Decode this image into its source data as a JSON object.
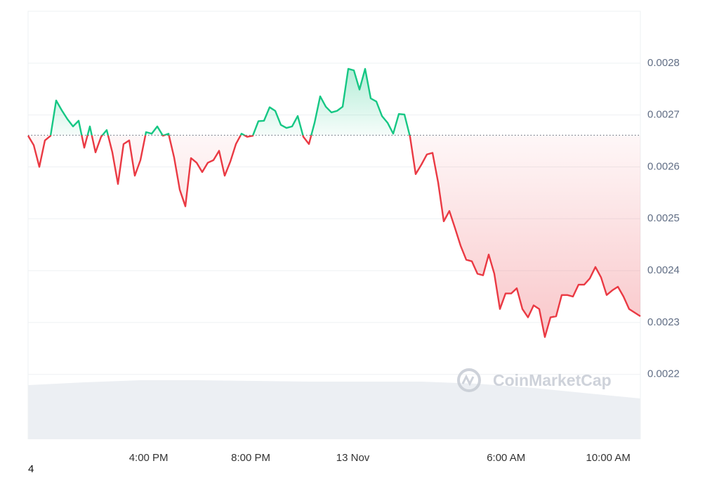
{
  "chart_data": {
    "type": "line",
    "x": [
      -12.72,
      -12.5,
      -12.28,
      -12.06,
      -11.84,
      -11.62,
      -11.4,
      -11.18,
      -10.96,
      -10.74,
      -10.52,
      -10.3,
      -10.08,
      -9.86,
      -9.64,
      -9.42,
      -9.2,
      -8.98,
      -8.76,
      -8.54,
      -8.32,
      -8.1,
      -7.88,
      -7.66,
      -7.44,
      -7.22,
      -7,
      -6.78,
      -6.56,
      -6.34,
      -6.12,
      -5.9,
      -5.68,
      -5.46,
      -5.24,
      -5.02,
      -4.8,
      -4.58,
      -4.36,
      -4.14,
      -3.92,
      -3.7,
      -3.48,
      -3.26,
      -3.04,
      -2.82,
      -2.6,
      -2.38,
      -2.16,
      -1.94,
      -1.72,
      -1.5,
      -1.28,
      -1.06,
      -0.84,
      -0.62,
      -0.4,
      -0.18,
      0.04,
      0.26,
      0.48,
      0.7,
      0.92,
      1.14,
      1.36,
      1.58,
      1.8,
      2.02,
      2.24,
      2.46,
      2.68,
      2.9,
      3.12,
      3.34,
      3.56,
      3.78,
      4,
      4.22,
      4.44,
      4.66,
      4.88,
      5.1,
      5.32,
      5.54,
      5.76,
      5.98,
      6.2,
      6.42,
      6.64,
      6.86,
      7.08,
      7.3,
      7.52,
      7.74,
      7.96,
      8.18,
      8.4,
      8.62,
      8.84,
      9.06,
      9.28,
      9.5,
      9.72,
      9.94,
      10.16,
      10.38,
      10.6,
      10.82,
      11.04,
      11.26
    ],
    "values": [
      0.00266,
      0.002642,
      0.0026,
      0.002651,
      0.00266,
      0.002728,
      0.002709,
      0.002692,
      0.002678,
      0.002689,
      0.002637,
      0.002678,
      0.002628,
      0.002658,
      0.002671,
      0.002628,
      0.002567,
      0.002644,
      0.002651,
      0.002583,
      0.002613,
      0.002667,
      0.002664,
      0.002678,
      0.00266,
      0.002664,
      0.002618,
      0.002556,
      0.002524,
      0.002617,
      0.002608,
      0.00259,
      0.002608,
      0.002613,
      0.002631,
      0.002583,
      0.00261,
      0.002644,
      0.002664,
      0.002658,
      0.00266,
      0.002688,
      0.002689,
      0.002715,
      0.002708,
      0.002681,
      0.002675,
      0.002678,
      0.002698,
      0.002658,
      0.002644,
      0.002685,
      0.002736,
      0.002716,
      0.002705,
      0.002708,
      0.002716,
      0.002789,
      0.002786,
      0.002749,
      0.002789,
      0.002732,
      0.002726,
      0.002698,
      0.002685,
      0.002664,
      0.002702,
      0.002701,
      0.002658,
      0.002586,
      0.002604,
      0.002624,
      0.002627,
      0.00257,
      0.002495,
      0.002515,
      0.002482,
      0.002448,
      0.002421,
      0.002418,
      0.002394,
      0.002391,
      0.002431,
      0.002394,
      0.002326,
      0.002356,
      0.002356,
      0.002366,
      0.002326,
      0.00231,
      0.002333,
      0.002326,
      0.002272,
      0.00231,
      0.002312,
      0.002353,
      0.002353,
      0.00235,
      0.002373,
      0.002373,
      0.002385,
      0.002407,
      0.002387,
      0.002353,
      0.002362,
      0.002369,
      0.00235,
      0.002326,
      0.002319,
      0.002312
    ],
    "baseline": 0.002661,
    "up_color": "#16c784",
    "down_color": "#ea3943",
    "xlim": [
      -12.72,
      11.26
    ],
    "xticks": [
      {
        "value": -8,
        "label": "4:00 PM"
      },
      {
        "value": -4,
        "label": "8:00 PM"
      },
      {
        "value": 0,
        "label": "13 Nov"
      },
      {
        "value": 6,
        "label": "6:00 AM"
      },
      {
        "value": 10,
        "label": "10:00 AM"
      }
    ],
    "ylim": [
      0.002075,
      0.0029
    ],
    "yticks": [
      0.0022,
      0.0023,
      0.0024,
      0.0025,
      0.0026,
      0.0027,
      0.0028
    ],
    "grid": true,
    "watermark": "CoinMarketCap",
    "caption": "4"
  }
}
